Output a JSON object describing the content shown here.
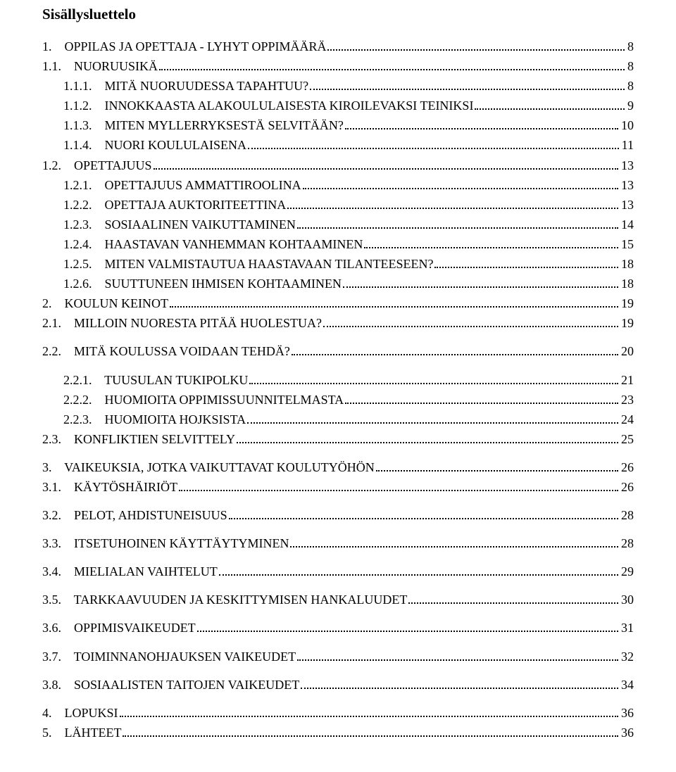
{
  "heading": "Sisällysluettelo",
  "toc": [
    {
      "label": "1.    OPPILAS JA OPETTAJA - LYHYT OPPIMÄÄRÄ",
      "page": "8",
      "indent": 0,
      "gap": 0
    },
    {
      "label": "1.1.    NUORUUSIKÄ",
      "page": "8",
      "indent": 0,
      "gap": 0
    },
    {
      "label": "1.1.1.    MITÄ NUORUUDESSA TAPAHTUU?",
      "page": "8",
      "indent": 1,
      "gap": 0
    },
    {
      "label": "1.1.2.    INNOKKAASTA ALAKOULULAISESTA KIROILEVAKSI TEINIKSI",
      "page": "9",
      "indent": 1,
      "gap": 0
    },
    {
      "label": "1.1.3.    MITEN MYLLERRYKSESTÄ SELVITÄÄN?",
      "page": "10",
      "indent": 1,
      "gap": 0
    },
    {
      "label": "1.1.4.    NUORI KOULULAISENA",
      "page": "11",
      "indent": 1,
      "gap": 0
    },
    {
      "label": "1.2.    OPETTAJUUS",
      "page": "13",
      "indent": 0,
      "gap": 0
    },
    {
      "label": "1.2.1.    OPETTAJUUS AMMATTIROOLINA",
      "page": "13",
      "indent": 1,
      "gap": 0
    },
    {
      "label": "1.2.2.    OPETTAJA AUKTORITEETTINA",
      "page": "13",
      "indent": 1,
      "gap": 0
    },
    {
      "label": "1.2.3.    SOSIAALINEN VAIKUTTAMINEN",
      "page": "14",
      "indent": 1,
      "gap": 0
    },
    {
      "label": "1.2.4.    HAASTAVAN VANHEMMAN KOHTAAMINEN",
      "page": "15",
      "indent": 1,
      "gap": 0
    },
    {
      "label": "1.2.5.    MITEN VALMISTAUTUA HAASTAVAAN TILANTEESEEN?",
      "page": "18",
      "indent": 1,
      "gap": 0
    },
    {
      "label": "1.2.6.    SUUTTUNEEN IHMISEN KOHTAAMINEN",
      "page": "18",
      "indent": 1,
      "gap": 0
    },
    {
      "label": "2.    KOULUN KEINOT",
      "page": "19",
      "indent": 0,
      "gap": 0
    },
    {
      "label": "2.1.    MILLOIN NUORESTA PITÄÄ HUOLESTUA?",
      "page": "19",
      "indent": 0,
      "gap": 0
    },
    {
      "label": "2.2.    MITÄ KOULUSSA VOIDAAN TEHDÄ?",
      "page": "20",
      "indent": 0,
      "gap": 1
    },
    {
      "label": "2.2.1.    TUUSULAN TUKIPOLKU",
      "page": "21",
      "indent": 1,
      "gap": 1
    },
    {
      "label": "2.2.2.    HUOMIOITA OPPIMISSUUNNITELMASTA",
      "page": "23",
      "indent": 1,
      "gap": 0
    },
    {
      "label": "2.2.3.    HUOMIOITA HOJKSISTA",
      "page": "24",
      "indent": 1,
      "gap": 0
    },
    {
      "label": "2.3.    KONFLIKTIEN SELVITTELY",
      "page": "25",
      "indent": 0,
      "gap": 0
    },
    {
      "label": "3.    VAIKEUKSIA, JOTKA VAIKUTTAVAT KOULUTYÖHÖN",
      "page": "26",
      "indent": 0,
      "gap": 1
    },
    {
      "label": "3.1.    KÄYTÖSHÄIRIÖT",
      "page": "26",
      "indent": 0,
      "gap": 0
    },
    {
      "label": "3.2.    PELOT, AHDISTUNEISUUS",
      "page": "28",
      "indent": 0,
      "gap": 1
    },
    {
      "label": "3.3.    ITSETUHOINEN KÄYTTÄYTYMINEN",
      "page": "28",
      "indent": 0,
      "gap": 1
    },
    {
      "label": "3.4.    MIELIALAN VAIHTELUT",
      "page": "29",
      "indent": 0,
      "gap": 1
    },
    {
      "label": "3.5.    TARKKAAVUUDEN JA KESKITTYMISEN HANKALUUDET",
      "page": "30",
      "indent": 0,
      "gap": 1
    },
    {
      "label": "3.6.    OPPIMISVAIKEUDET",
      "page": "31",
      "indent": 0,
      "gap": 1
    },
    {
      "label": "3.7.    TOIMINNANOHJAUKSEN VAIKEUDET",
      "page": "32",
      "indent": 0,
      "gap": 1
    },
    {
      "label": "3.8.    SOSIAALISTEN TAITOJEN VAIKEUDET",
      "page": "34",
      "indent": 0,
      "gap": 1
    },
    {
      "label": "4.    LOPUKSI",
      "page": "36",
      "indent": 0,
      "gap": 1
    },
    {
      "label": "5.    LÄHTEET",
      "page": "36",
      "indent": 0,
      "gap": 0
    }
  ]
}
